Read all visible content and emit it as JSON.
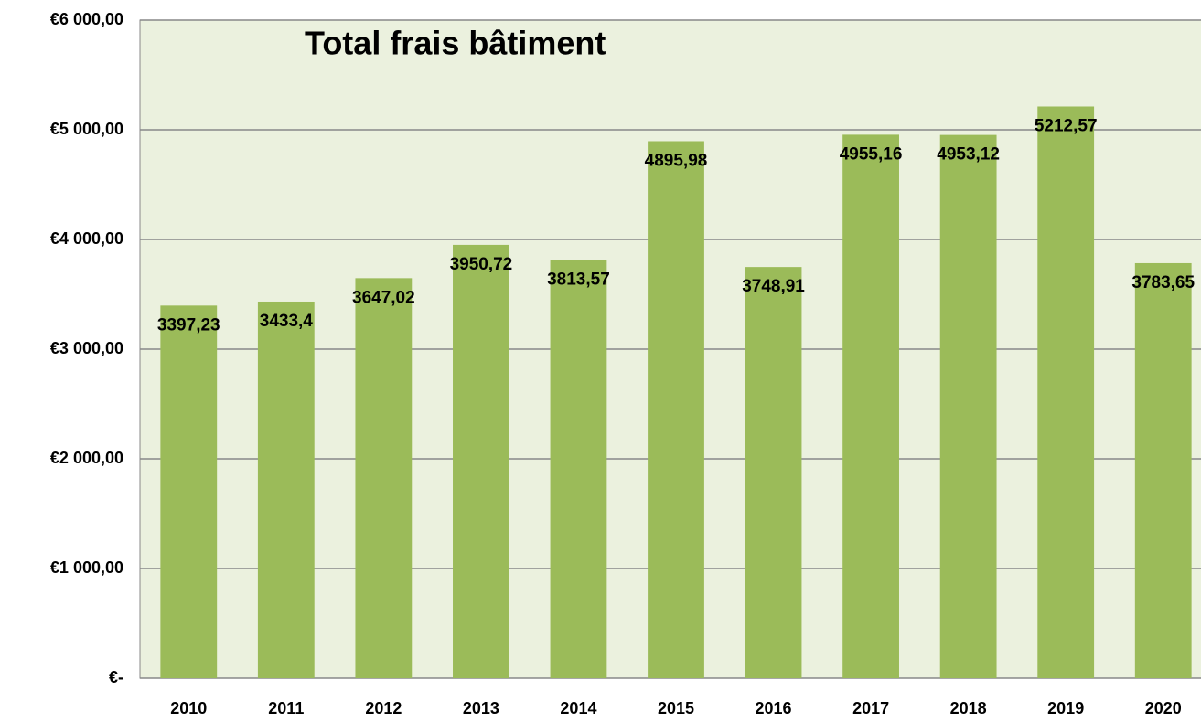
{
  "chart_data": {
    "type": "bar",
    "title": "Total frais bâtiment",
    "categories": [
      "2010",
      "2011",
      "2012",
      "2013",
      "2014",
      "2015",
      "2016",
      "2017",
      "2018",
      "2019",
      "2020"
    ],
    "values": [
      3397.23,
      3433.4,
      3647.02,
      3950.72,
      3813.57,
      4895.98,
      3748.91,
      4955.16,
      4953.12,
      5212.57,
      3783.65
    ],
    "value_labels": [
      "3397,23",
      "3433,4",
      "3647,02",
      "3950,72",
      "3813,57",
      "4895,98",
      "3748,91",
      "4955,16",
      "4953,12",
      "5212,57",
      "3783,65"
    ],
    "color": "#9bbb59",
    "ylim": [
      0,
      6000
    ],
    "yticks": [
      {
        "value": 0,
        "label": "€-"
      },
      {
        "value": 1000,
        "label": "€1 000,00"
      },
      {
        "value": 2000,
        "label": "€2 000,00"
      },
      {
        "value": 3000,
        "label": "€3 000,00"
      },
      {
        "value": 4000,
        "label": "€4 000,00"
      },
      {
        "value": 5000,
        "label": "€5 000,00"
      },
      {
        "value": 6000,
        "label": "€6 000,00"
      }
    ],
    "grid": true
  }
}
